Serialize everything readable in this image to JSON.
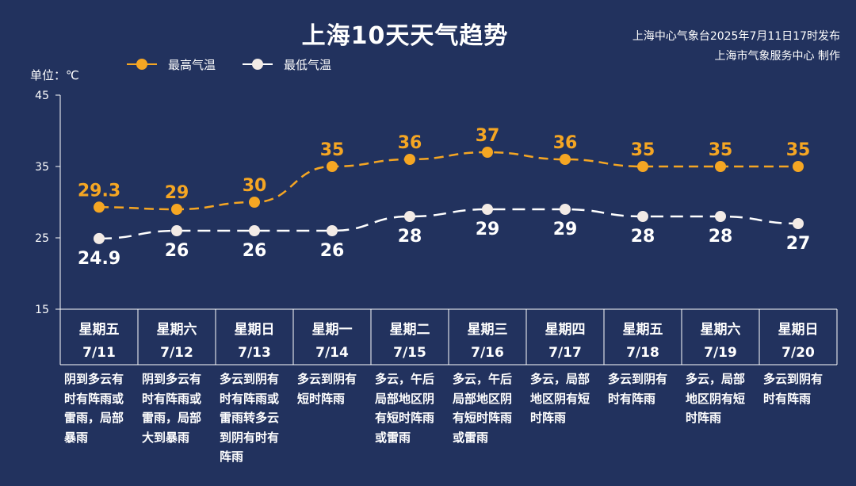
{
  "header": {
    "title": "上海10天天气趋势",
    "source_line1": "上海中心气象台2025年7月11日17时发布",
    "source_line2": "上海市气象服务中心 制作"
  },
  "legend": {
    "high_label": "最高气温",
    "low_label": "最低气温"
  },
  "unit_label": "单位：℃",
  "colors": {
    "background": "#22325e",
    "high": "#f5a623",
    "low": "#ffffff",
    "low_point": "#f3ebe6",
    "axis": "#ffffff"
  },
  "chart_data": {
    "type": "line",
    "categories": [
      "7/11",
      "7/12",
      "7/13",
      "7/14",
      "7/15",
      "7/16",
      "7/17",
      "7/18",
      "7/19",
      "7/20"
    ],
    "weekdays": [
      "星期五",
      "星期六",
      "星期日",
      "星期一",
      "星期二",
      "星期三",
      "星期四",
      "星期五",
      "星期六",
      "星期日"
    ],
    "series": [
      {
        "name": "最高气温",
        "values": [
          29.3,
          29,
          30,
          35,
          36,
          37,
          36,
          35,
          35,
          35
        ],
        "labels": [
          "29.3",
          "29",
          "30",
          "35",
          "36",
          "37",
          "36",
          "35",
          "35",
          "35"
        ]
      },
      {
        "name": "最低气温",
        "values": [
          24.9,
          26,
          26,
          26,
          28,
          29,
          29,
          28,
          28,
          27
        ],
        "labels": [
          "24.9",
          "26",
          "26",
          "26",
          "28",
          "29",
          "29",
          "28",
          "28",
          "27"
        ]
      }
    ],
    "ylim": [
      15,
      45
    ],
    "yticks": [
      "15",
      "25",
      "35",
      "45"
    ],
    "line_style": "dashed",
    "grid": false,
    "legend_position": "top-left"
  },
  "weather": [
    "阴到多云有时有阵雨或雷雨，局部暴雨",
    "阴到多云有时有阵雨或雷雨，局部大到暴雨",
    "多云到阴有时有阵雨或雷雨转多云到阴有时有阵雨",
    "多云到阴有短时阵雨",
    "多云，午后局部地区阴有短时阵雨或雷雨",
    "多云，午后局部地区阴有短时阵雨或雷雨",
    "多云，局部地区阴有短时阵雨",
    "多云到阴有时有阵雨",
    "多云，局部地区阴有短时阵雨",
    "多云到阴有时有阵雨"
  ]
}
